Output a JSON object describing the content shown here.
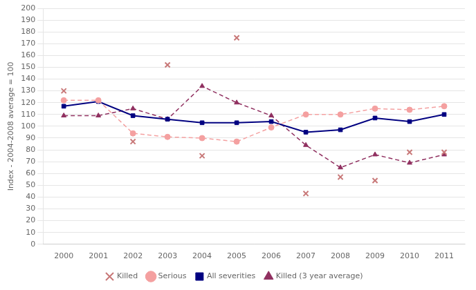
{
  "chart_data": {
    "type": "line",
    "y_label": "Index - 2004-2008 average = 100",
    "x": [
      2000,
      2001,
      2002,
      2003,
      2004,
      2005,
      2006,
      2007,
      2008,
      2009,
      2010,
      2011
    ],
    "series": [
      {
        "name": "Killed",
        "type": "scatter",
        "color": "#c87878",
        "marker": "x",
        "line_style": "none",
        "x": [
          2000,
          2002,
          2003,
          2004,
          2005,
          2007,
          2008,
          2009,
          2010,
          2011
        ],
        "values": [
          130,
          87,
          152,
          75,
          175,
          43,
          57,
          54,
          78,
          78
        ]
      },
      {
        "name": "Serious",
        "type": "line",
        "color": "#f4a0a0",
        "marker": "circle",
        "line_style": "dashed",
        "values": [
          122,
          122,
          94,
          91,
          90,
          87,
          99,
          110,
          110,
          115,
          114,
          117
        ]
      },
      {
        "name": "All severities",
        "type": "line",
        "color": "#000080",
        "marker": "square",
        "line_style": "solid",
        "values": [
          117,
          121,
          109,
          106,
          103,
          103,
          104,
          95,
          97,
          107,
          104,
          110
        ]
      },
      {
        "name": "Killed (3 year average)",
        "type": "line",
        "color": "#903060",
        "marker": "triangle",
        "line_style": "dashed",
        "values": [
          109,
          109,
          115,
          106,
          134,
          120,
          109,
          84,
          65,
          76,
          69,
          76
        ]
      }
    ],
    "xlim": [
      1999.4,
      2011.6
    ],
    "xticks": [
      2000,
      2001,
      2002,
      2003,
      2004,
      2005,
      2006,
      2007,
      2008,
      2009,
      2010,
      2011
    ],
    "ylim": [
      0,
      200
    ],
    "yticks": [
      0,
      10,
      20,
      30,
      40,
      50,
      60,
      70,
      80,
      90,
      100,
      110,
      120,
      130,
      140,
      150,
      160,
      170,
      180,
      190,
      200
    ],
    "grid": "y",
    "legend": "bottom"
  }
}
